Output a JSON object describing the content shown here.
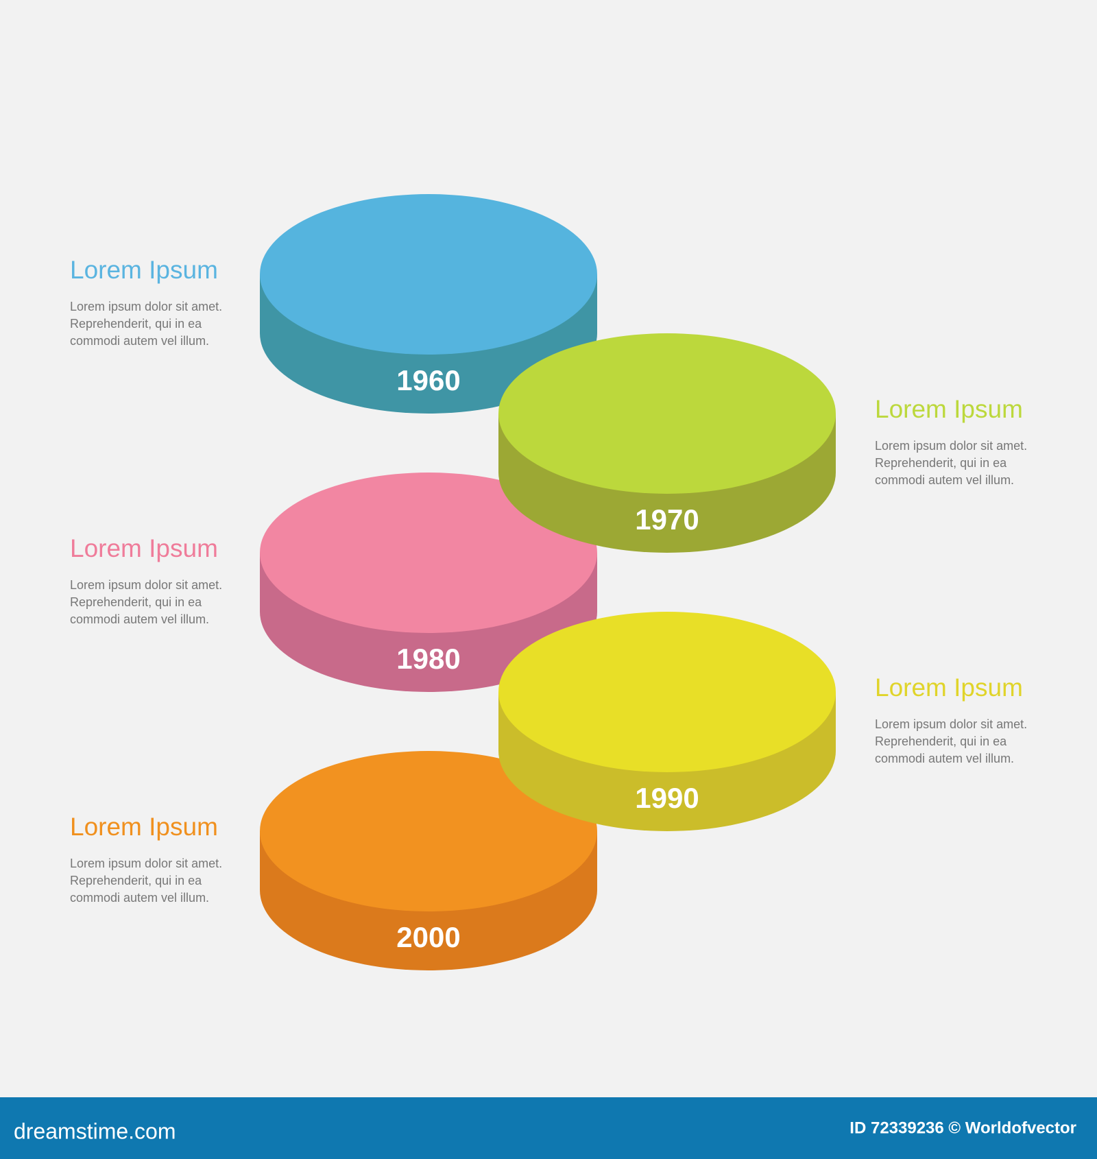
{
  "items": [
    {
      "year": "1960",
      "title": "Lorem Ipsum",
      "lines": [
        "Lorem ipsum dolor sit amet.",
        "Reprehenderit, qui in ea",
        "commodi autem vel illum."
      ]
    },
    {
      "year": "1970",
      "title": "Lorem Ipsum",
      "lines": [
        "Lorem ipsum dolor sit amet.",
        "Reprehenderit, qui in ea",
        "commodi autem vel illum."
      ]
    },
    {
      "year": "1980",
      "title": "Lorem Ipsum",
      "lines": [
        "Lorem ipsum dolor sit amet.",
        "Reprehenderit, qui in ea",
        "commodi autem vel illum."
      ]
    },
    {
      "year": "1990",
      "title": "Lorem Ipsum",
      "lines": [
        "Lorem ipsum dolor sit amet.",
        "Reprehenderit, qui in ea",
        "commodi autem vel illum."
      ]
    },
    {
      "year": "2000",
      "title": "Lorem Ipsum",
      "lines": [
        "Lorem ipsum dolor sit amet.",
        "Reprehenderit, qui in ea",
        "commodi autem vel illum."
      ]
    }
  ],
  "footer": {
    "brand": "dreamstime.com",
    "credit": "ID 72339236 © Worldofvector"
  }
}
